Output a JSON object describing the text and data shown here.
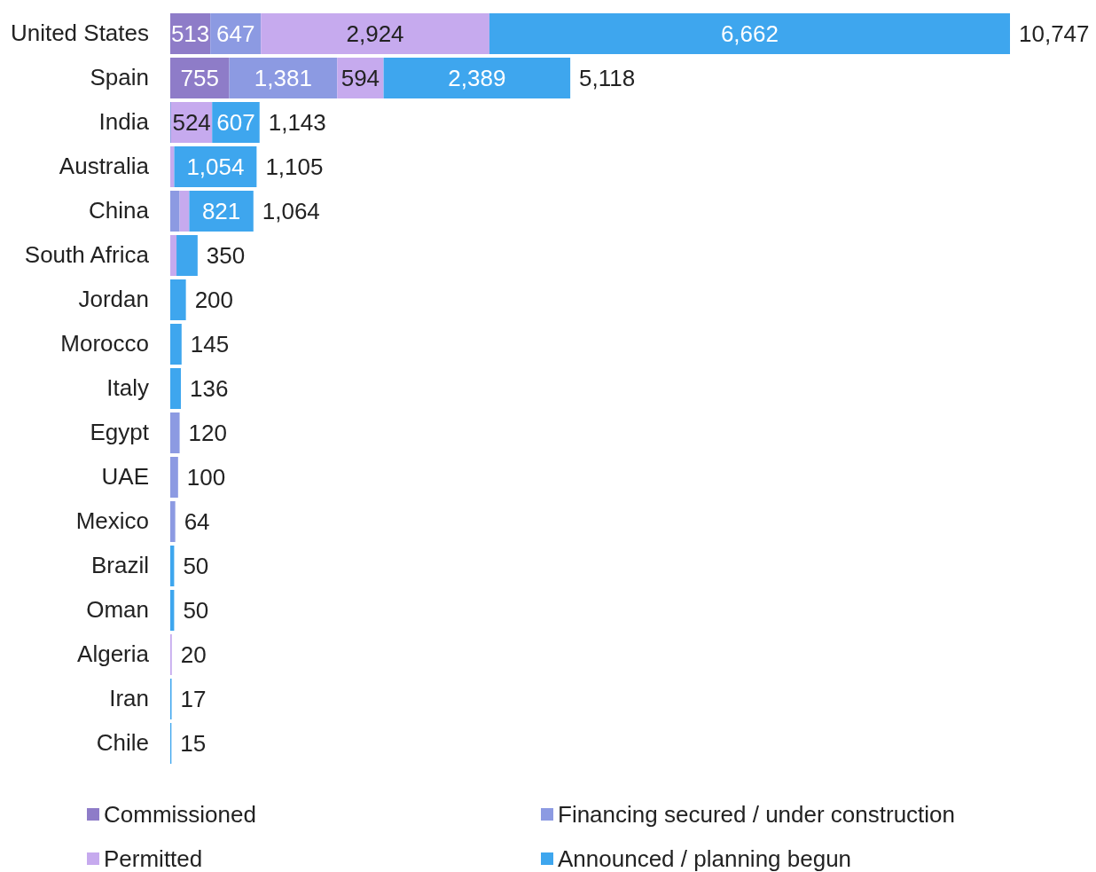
{
  "chart_data": {
    "type": "bar",
    "orientation": "horizontal",
    "stacked": true,
    "legend": "bottom",
    "data_labels": false,
    "categories": [
      "United States",
      "Spain",
      "India",
      "Australia",
      "China",
      "South Africa",
      "Jordan",
      "Morocco",
      "Italy",
      "Egypt",
      "UAE",
      "Mexico",
      "Brazil",
      "Oman",
      "Algeria",
      "Iran",
      "Chile"
    ],
    "series": [
      {
        "name": "Commissioned",
        "color": "#8e7cc8",
        "values": [
          513,
          755,
          0,
          0,
          0,
          0,
          0,
          0,
          0,
          0,
          0,
          0,
          0,
          0,
          0,
          0,
          0
        ],
        "value_labels": [
          "513",
          "755",
          null,
          null,
          null,
          null,
          null,
          null,
          null,
          null,
          null,
          null,
          null,
          null,
          null,
          null,
          null
        ]
      },
      {
        "name": "Financing secured / under construction",
        "color": "#8c9ae2",
        "values": [
          647,
          1381,
          12,
          0,
          120,
          0,
          0,
          0,
          0,
          120,
          100,
          64,
          0,
          0,
          0,
          0,
          0
        ],
        "value_labels": [
          "647",
          "1,381",
          null,
          null,
          null,
          null,
          null,
          null,
          null,
          null,
          null,
          null,
          null,
          null,
          null,
          null,
          null
        ]
      },
      {
        "name": "Permitted",
        "color": "#c6aaee",
        "values": [
          2924,
          594,
          524,
          51,
          123,
          80,
          0,
          0,
          0,
          0,
          0,
          0,
          0,
          0,
          20,
          0,
          0
        ],
        "value_labels": [
          "2,924",
          "594",
          "524",
          null,
          null,
          null,
          null,
          null,
          null,
          null,
          null,
          null,
          null,
          null,
          null,
          null,
          null
        ]
      },
      {
        "name": "Announced / planning begun",
        "color": "#3ea6ee",
        "values": [
          6662,
          2389,
          607,
          1054,
          821,
          270,
          200,
          145,
          136,
          0,
          0,
          0,
          50,
          50,
          0,
          17,
          15
        ],
        "value_labels": [
          "6,662",
          "2,389",
          "607",
          "1,054",
          "821",
          null,
          null,
          null,
          null,
          null,
          null,
          null,
          null,
          null,
          null,
          null,
          null
        ]
      }
    ],
    "totals": [
      "10,747",
      "5,118",
      "1,143",
      "1,105",
      "1,064",
      "350",
      "200",
      "145",
      "136",
      "120",
      "100",
      "64",
      "50",
      "50",
      "20",
      "17",
      "15"
    ]
  }
}
